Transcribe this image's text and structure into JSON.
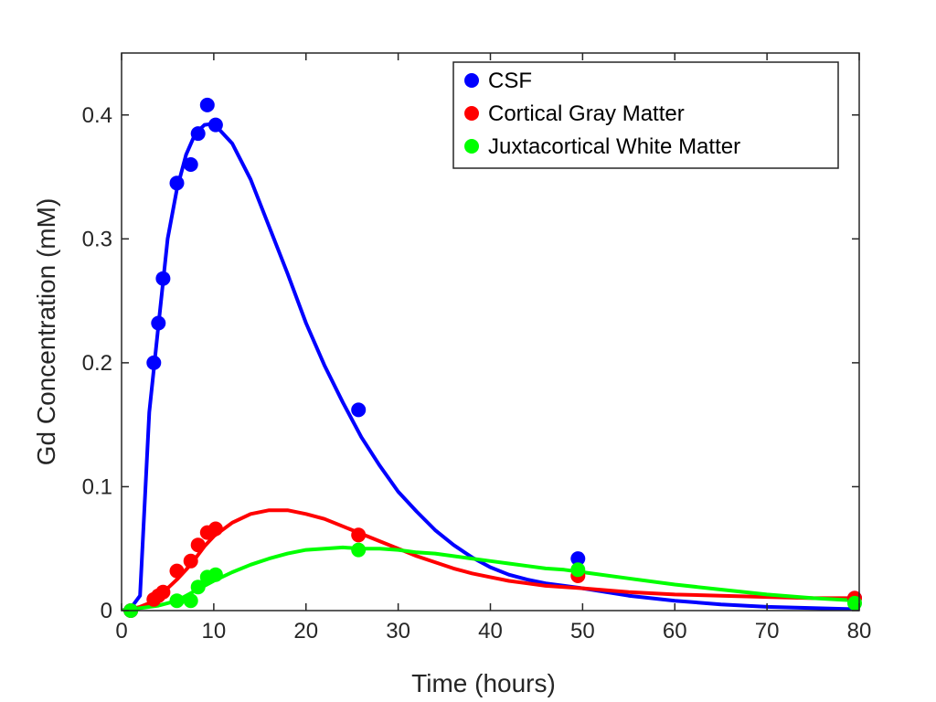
{
  "chart_data": {
    "type": "scatter",
    "xlabel": "Time (hours)",
    "ylabel": "Gd Concentration (mM)",
    "xlim": [
      0,
      80
    ],
    "ylim": [
      0,
      0.45
    ],
    "xticks": [
      0,
      10,
      20,
      30,
      40,
      50,
      60,
      70,
      80
    ],
    "yticks": [
      0,
      0.1,
      0.2,
      0.3,
      0.4
    ],
    "xtick_labels": [
      "0",
      "10",
      "20",
      "30",
      "40",
      "50",
      "60",
      "70",
      "80"
    ],
    "ytick_labels": [
      "0",
      "0.1",
      "0.2",
      "0.3",
      "0.4"
    ],
    "grid": false,
    "legend_position": "top-right",
    "series": [
      {
        "name": "CSF",
        "color": "#0000ff",
        "points": [
          [
            1,
            0
          ],
          [
            3.5,
            0.2
          ],
          [
            4,
            0.232
          ],
          [
            4.5,
            0.268
          ],
          [
            6,
            0.345
          ],
          [
            7.5,
            0.36
          ],
          [
            8.3,
            0.385
          ],
          [
            9.3,
            0.408
          ],
          [
            10.2,
            0.392
          ],
          [
            25.7,
            0.162
          ],
          [
            49.5,
            0.042
          ],
          [
            79.5,
            0.01
          ]
        ],
        "fit": [
          [
            0,
            0
          ],
          [
            1,
            0.002
          ],
          [
            2,
            0.012
          ],
          [
            3,
            0.16
          ],
          [
            4,
            0.23
          ],
          [
            5,
            0.3
          ],
          [
            6,
            0.34
          ],
          [
            7,
            0.368
          ],
          [
            8,
            0.385
          ],
          [
            9,
            0.392
          ],
          [
            10,
            0.393
          ],
          [
            12,
            0.377
          ],
          [
            14,
            0.348
          ],
          [
            16,
            0.31
          ],
          [
            18,
            0.272
          ],
          [
            20,
            0.232
          ],
          [
            22,
            0.198
          ],
          [
            24,
            0.168
          ],
          [
            26,
            0.14
          ],
          [
            28,
            0.117
          ],
          [
            30,
            0.096
          ],
          [
            32,
            0.08
          ],
          [
            34,
            0.065
          ],
          [
            36,
            0.053
          ],
          [
            38,
            0.043
          ],
          [
            40,
            0.035
          ],
          [
            42,
            0.029
          ],
          [
            44,
            0.025
          ],
          [
            46,
            0.022
          ],
          [
            48,
            0.02
          ],
          [
            50,
            0.018
          ],
          [
            55,
            0.012
          ],
          [
            60,
            0.008
          ],
          [
            65,
            0.005
          ],
          [
            70,
            0.003
          ],
          [
            75,
            0.002
          ],
          [
            80,
            0.001
          ]
        ]
      },
      {
        "name": "Cortical Gray Matter",
        "color": "#ff0000",
        "points": [
          [
            1,
            0
          ],
          [
            3.5,
            0.009
          ],
          [
            4,
            0.012
          ],
          [
            4.5,
            0.015
          ],
          [
            6,
            0.032
          ],
          [
            7.5,
            0.04
          ],
          [
            8.3,
            0.053
          ],
          [
            9.3,
            0.063
          ],
          [
            10.2,
            0.066
          ],
          [
            25.7,
            0.061
          ],
          [
            49.5,
            0.028
          ],
          [
            79.5,
            0.01
          ]
        ],
        "fit": [
          [
            0,
            0
          ],
          [
            1,
            0.001
          ],
          [
            2,
            0.003
          ],
          [
            3,
            0.006
          ],
          [
            4,
            0.012
          ],
          [
            5,
            0.018
          ],
          [
            6,
            0.025
          ],
          [
            7,
            0.033
          ],
          [
            8,
            0.042
          ],
          [
            9,
            0.052
          ],
          [
            10,
            0.06
          ],
          [
            12,
            0.071
          ],
          [
            14,
            0.078
          ],
          [
            16,
            0.081
          ],
          [
            18,
            0.081
          ],
          [
            20,
            0.078
          ],
          [
            22,
            0.074
          ],
          [
            24,
            0.068
          ],
          [
            26,
            0.062
          ],
          [
            28,
            0.056
          ],
          [
            30,
            0.05
          ],
          [
            32,
            0.044
          ],
          [
            34,
            0.039
          ],
          [
            36,
            0.034
          ],
          [
            38,
            0.03
          ],
          [
            40,
            0.027
          ],
          [
            42,
            0.024
          ],
          [
            44,
            0.022
          ],
          [
            46,
            0.02
          ],
          [
            48,
            0.019
          ],
          [
            50,
            0.018
          ],
          [
            55,
            0.015
          ],
          [
            60,
            0.013
          ],
          [
            65,
            0.012
          ],
          [
            70,
            0.011
          ],
          [
            75,
            0.01
          ],
          [
            80,
            0.01
          ]
        ]
      },
      {
        "name": "Juxtacortical White Matter",
        "color": "#00ff00",
        "points": [
          [
            1,
            0
          ],
          [
            6,
            0.008
          ],
          [
            7.5,
            0.008
          ],
          [
            8.3,
            0.019
          ],
          [
            9.3,
            0.027
          ],
          [
            10.2,
            0.029
          ],
          [
            25.7,
            0.049
          ],
          [
            49.5,
            0.033
          ],
          [
            79.5,
            0.006
          ]
        ],
        "fit": [
          [
            0,
            0
          ],
          [
            2,
            0.002
          ],
          [
            4,
            0.004
          ],
          [
            6,
            0.008
          ],
          [
            8,
            0.016
          ],
          [
            10,
            0.024
          ],
          [
            12,
            0.031
          ],
          [
            14,
            0.037
          ],
          [
            16,
            0.042
          ],
          [
            18,
            0.046
          ],
          [
            20,
            0.049
          ],
          [
            22,
            0.05
          ],
          [
            24,
            0.051
          ],
          [
            26,
            0.05
          ],
          [
            28,
            0.05
          ],
          [
            30,
            0.049
          ],
          [
            32,
            0.047
          ],
          [
            34,
            0.046
          ],
          [
            36,
            0.044
          ],
          [
            38,
            0.042
          ],
          [
            40,
            0.04
          ],
          [
            42,
            0.038
          ],
          [
            44,
            0.036
          ],
          [
            46,
            0.034
          ],
          [
            48,
            0.033
          ],
          [
            50,
            0.031
          ],
          [
            55,
            0.026
          ],
          [
            60,
            0.021
          ],
          [
            65,
            0.017
          ],
          [
            70,
            0.013
          ],
          [
            75,
            0.01
          ],
          [
            80,
            0.008
          ]
        ]
      }
    ]
  }
}
